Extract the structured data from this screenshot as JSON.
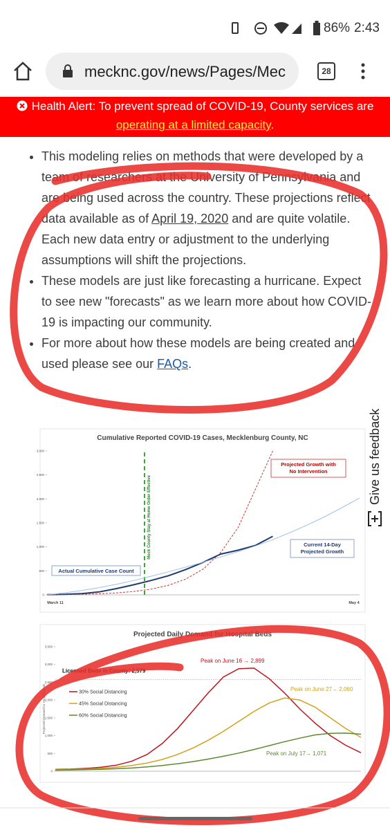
{
  "status_bar": {
    "battery": "86%",
    "time": "2:43"
  },
  "browser": {
    "url": "mecknc.gov/news/Pages/Mec",
    "tabs": 28
  },
  "alert": {
    "text": "Health Alert: To prevent spread of COVID-19, County services are",
    "link": "operating at a limited capacity",
    "end": "."
  },
  "bullets": [
    {
      "before": "This modeling relies on methods that were developed by a team of researchers at the University of Pennsylvania and are being used across the country. These projections reflect data available as of ",
      "link": "April 19, 2020",
      "after": " and are quite volatile. Each new data entry or adjustment to the underlying assumptions will shift the projections."
    },
    {
      "before": "These models are just like forecasting a hurricane. Expect to see new \"forecasts\" as we learn more about how COVID-19 is impacting our community.",
      "link": null,
      "after": null
    },
    {
      "before": "For more about how these models are being created and used please see our ",
      "link": "FAQs",
      "after": "."
    }
  ],
  "feedback": "Give us feedback",
  "charts": [
    {
      "type": "line",
      "title": "Cumulative Reported COVID-19 Cases, Mecklenburg County, NC",
      "categories": [
        "March 11",
        null,
        null,
        null,
        null,
        null,
        null,
        null,
        null,
        null,
        null,
        null,
        null,
        null,
        null,
        null,
        null,
        null,
        "May 4"
      ],
      "series": [
        {
          "name": "Actual Cumulative Case Count",
          "color": "#1f3a6e",
          "dashed": false,
          "width": 2,
          "values": [
            5,
            10,
            25,
            60,
            130,
            210,
            300,
            400,
            530,
            680,
            850,
            930,
            1030,
            1220,
            null,
            null,
            null,
            null,
            null
          ]
        },
        {
          "name": "Projected Growth with No Intervention",
          "color": "#d0312d",
          "dashed": true,
          "width": 1,
          "values": [
            2,
            6,
            12,
            22,
            40,
            70,
            120,
            200,
            330,
            540,
            880,
            1400,
            2200,
            3000,
            null,
            null,
            null,
            null,
            null
          ]
        },
        {
          "name": "Current 14-Day Projected Growth",
          "color": "#9cbfe6",
          "dashed": false,
          "width": 1,
          "values": [
            0,
            40,
            90,
            150,
            220,
            300,
            390,
            480,
            580,
            680,
            790,
            900,
            1020,
            1150,
            1300,
            1460,
            1630,
            1820,
            2020
          ]
        }
      ],
      "ylim": [
        0,
        3000
      ],
      "yticks": [
        0,
        500,
        {
          "value": 1000,
          "label": "1,000"
        },
        {
          "value": 1500,
          "label": "1,500"
        },
        {
          "value": 2000,
          "label": "2,000"
        },
        {
          "value": 2500,
          "label": "2,500"
        },
        {
          "value": 3000,
          "label": "3,000"
        }
      ],
      "event_label": "Meck County Stay at Home Order Effective"
    },
    {
      "type": "line",
      "title": "Projected Daily Demand for Hospital Beds",
      "y_label": "Projected Demand for Hospital Beds",
      "series": [
        {
          "name": "30% Social Distancing",
          "color": "#c0141c",
          "values": [
            50,
            60,
            80,
            110,
            170,
            280,
            470,
            780,
            1200,
            1700,
            2200,
            2650,
            2880,
            2899,
            2600,
            2200,
            1750,
            1350,
            1000,
            730,
            520
          ],
          "peak_label": "Peak on June 16 → 2,899"
        },
        {
          "name": "45% Social Distancing",
          "color": "#d4a017",
          "values": [
            40,
            50,
            60,
            80,
            110,
            160,
            230,
            330,
            470,
            650,
            870,
            1120,
            1400,
            1680,
            1920,
            2060,
            2000,
            1800,
            1500,
            1200,
            950
          ],
          "peak_label": "Peak on June 27→ 2,060"
        },
        {
          "name": "60% Social Distancing",
          "color": "#5a8a2e",
          "values": [
            30,
            35,
            45,
            55,
            70,
            90,
            120,
            160,
            210,
            270,
            340,
            420,
            510,
            610,
            720,
            830,
            930,
            1020,
            1065,
            1071,
            1040
          ],
          "peak_label": "Peak on July 17→ 1,071"
        }
      ],
      "ylim": [
        0,
        3500
      ],
      "yticks": [
        0,
        500,
        {
          "value": 1000,
          "label": "1,000"
        },
        {
          "value": 1500,
          "label": "1,500"
        },
        {
          "value": 2000,
          "label": "2,000"
        },
        {
          "value": 2500,
          "label": "2,500"
        },
        {
          "value": 3000,
          "label": "3,000"
        },
        {
          "value": 3500,
          "label": "3,500"
        }
      ],
      "reference": {
        "value": 2579,
        "label": "Licensed Beds in County: 2,579"
      }
    }
  ]
}
